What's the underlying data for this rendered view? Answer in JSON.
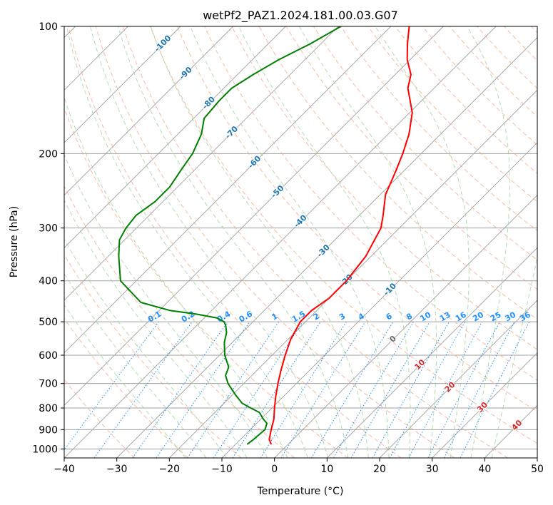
{
  "chart_data": {
    "type": "line",
    "chart_kind": "skew-T log-P diagram",
    "title": "wetPf2_PAZ1.2024.181.00.03.G07",
    "xlabel": "Temperature (°C)",
    "ylabel": "Pressure (hPa)",
    "xlim": [
      -40,
      50
    ],
    "ylim": [
      1050,
      100
    ],
    "yscale": "log",
    "xticks": [
      -40,
      -30,
      -20,
      -10,
      0,
      10,
      20,
      30,
      40,
      50
    ],
    "yticks": [
      1000,
      900,
      800,
      700,
      600,
      500,
      400,
      300,
      200,
      100
    ],
    "grid": true,
    "colors": {
      "temperature": "#ff0000",
      "dewpoint": "#008000",
      "isotherm": "#a0a0a0",
      "dry_adiabat": "#f4a582",
      "moist_adiabat": "#9fd49f",
      "mixing_ratio": "#1e90ff",
      "isotherm_label_negative": "#1f77b4",
      "isotherm_label_positive": "#d62728"
    },
    "series": [
      {
        "kind": "temperature",
        "points": [
          {
            "p": 975,
            "t": -3.2
          },
          {
            "p": 950,
            "t": -4.5
          },
          {
            "p": 900,
            "t": -6.0
          },
          {
            "p": 850,
            "t": -7.5
          },
          {
            "p": 800,
            "t": -9.5
          },
          {
            "p": 750,
            "t": -11.5
          },
          {
            "p": 700,
            "t": -13.5
          },
          {
            "p": 650,
            "t": -15.5
          },
          {
            "p": 600,
            "t": -17.5
          },
          {
            "p": 550,
            "t": -19.5
          },
          {
            "p": 500,
            "t": -21.0
          },
          {
            "p": 470,
            "t": -21.0
          },
          {
            "p": 440,
            "t": -20.0
          },
          {
            "p": 400,
            "t": -20.0
          },
          {
            "p": 350,
            "t": -21.0
          },
          {
            "p": 300,
            "t": -23.5
          },
          {
            "p": 280,
            "t": -25.5
          },
          {
            "p": 250,
            "t": -29.0
          },
          {
            "p": 220,
            "t": -31.5
          },
          {
            "p": 200,
            "t": -33.5
          },
          {
            "p": 180,
            "t": -36.0
          },
          {
            "p": 160,
            "t": -39.5
          },
          {
            "p": 140,
            "t": -45.0
          },
          {
            "p": 130,
            "t": -47.0
          },
          {
            "p": 120,
            "t": -50.5
          },
          {
            "p": 110,
            "t": -53.5
          },
          {
            "p": 100,
            "t": -56.5
          }
        ]
      },
      {
        "kind": "dewpoint",
        "points": [
          {
            "p": 975,
            "t": -7.8
          },
          {
            "p": 950,
            "t": -7.5
          },
          {
            "p": 900,
            "t": -7.2
          },
          {
            "p": 870,
            "t": -8.0
          },
          {
            "p": 850,
            "t": -9.5
          },
          {
            "p": 820,
            "t": -11.5
          },
          {
            "p": 800,
            "t": -14.0
          },
          {
            "p": 780,
            "t": -16.5
          },
          {
            "p": 750,
            "t": -19.0
          },
          {
            "p": 700,
            "t": -23.0
          },
          {
            "p": 670,
            "t": -25.0
          },
          {
            "p": 640,
            "t": -26.0
          },
          {
            "p": 600,
            "t": -29.0
          },
          {
            "p": 560,
            "t": -31.5
          },
          {
            "p": 530,
            "t": -33.0
          },
          {
            "p": 510,
            "t": -34.5
          },
          {
            "p": 500,
            "t": -35.5
          },
          {
            "p": 490,
            "t": -37.5
          },
          {
            "p": 480,
            "t": -42.0
          },
          {
            "p": 470,
            "t": -48.0
          },
          {
            "p": 450,
            "t": -55.0
          },
          {
            "p": 400,
            "t": -63.0
          },
          {
            "p": 350,
            "t": -68.0
          },
          {
            "p": 320,
            "t": -71.0
          },
          {
            "p": 300,
            "t": -72.0
          },
          {
            "p": 280,
            "t": -72.5
          },
          {
            "p": 260,
            "t": -71.5
          },
          {
            "p": 240,
            "t": -71.5
          },
          {
            "p": 220,
            "t": -72.5
          },
          {
            "p": 200,
            "t": -73.5
          },
          {
            "p": 180,
            "t": -75.5
          },
          {
            "p": 165,
            "t": -78.0
          },
          {
            "p": 150,
            "t": -78.5
          },
          {
            "p": 140,
            "t": -78.5
          },
          {
            "p": 130,
            "t": -77.0
          },
          {
            "p": 120,
            "t": -75.0
          },
          {
            "p": 110,
            "t": -72.0
          },
          {
            "p": 100,
            "t": -69.5
          }
        ]
      }
    ],
    "isotherm_labels": [
      "-100",
      "-90",
      "-80",
      "-70",
      "-60",
      "-50",
      "-40",
      "-30",
      "-20",
      "-10",
      "0",
      "10",
      "20",
      "30",
      "40"
    ],
    "mixing_ratio_labels": [
      "0.1",
      "0.2",
      "0.4",
      "0.6",
      "1",
      "1.5",
      "2",
      "3",
      "4",
      "6",
      "8",
      "10",
      "13",
      "16",
      "20",
      "25",
      "30",
      "36"
    ],
    "mixing_ratio_values": [
      0.1,
      0.2,
      0.4,
      0.6,
      1,
      1.5,
      2,
      3,
      4,
      6,
      8,
      10,
      13,
      16,
      20,
      25,
      30,
      36
    ]
  }
}
